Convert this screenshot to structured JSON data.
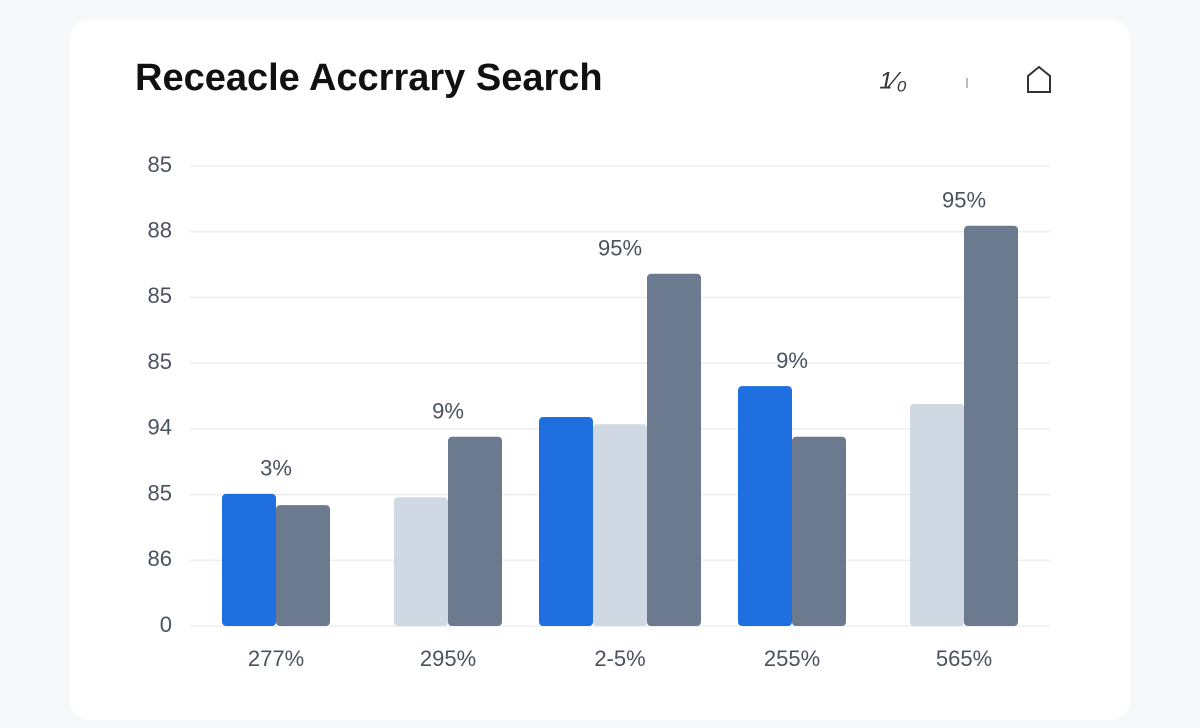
{
  "chart_data": {
    "type": "bar",
    "title": "Receacle Accrrary Search",
    "toolbar_text": "1⁄₀",
    "categories": [
      "277%",
      "295%",
      "2-5%",
      "255%",
      "565%"
    ],
    "series": [
      {
        "color": "#1f6fe0",
        "values": [
          2.01,
          null,
          3.18,
          3.65,
          null
        ]
      },
      {
        "color": "#cfd8e3",
        "values": [
          null,
          1.96,
          3.07,
          null,
          3.38
        ]
      },
      {
        "color": "#6b7a8f",
        "values": [
          1.84,
          2.88,
          5.36,
          2.88,
          6.09
        ]
      }
    ],
    "annotations": [
      {
        "text": "3%",
        "category": "277%",
        "y": 2.01
      },
      {
        "text": "9%",
        "category": "295%",
        "y": 2.88
      },
      {
        "text": "95%",
        "category": "2-5%",
        "y": 5.36
      },
      {
        "text": "9%",
        "category": "255%",
        "y": 3.65
      },
      {
        "text": "95%",
        "category": "565%",
        "y": 6.09
      }
    ],
    "ylim": [
      0,
      7
    ],
    "yticks": [
      {
        "value": 0,
        "label": "0"
      },
      {
        "value": 1,
        "label": "86"
      },
      {
        "value": 2,
        "label": "85"
      },
      {
        "value": 3,
        "label": "94"
      },
      {
        "value": 4,
        "label": "85"
      },
      {
        "value": 5,
        "label": "85"
      },
      {
        "value": 6,
        "label": "88"
      },
      {
        "value": 7,
        "label": "85"
      }
    ],
    "grid": true
  }
}
